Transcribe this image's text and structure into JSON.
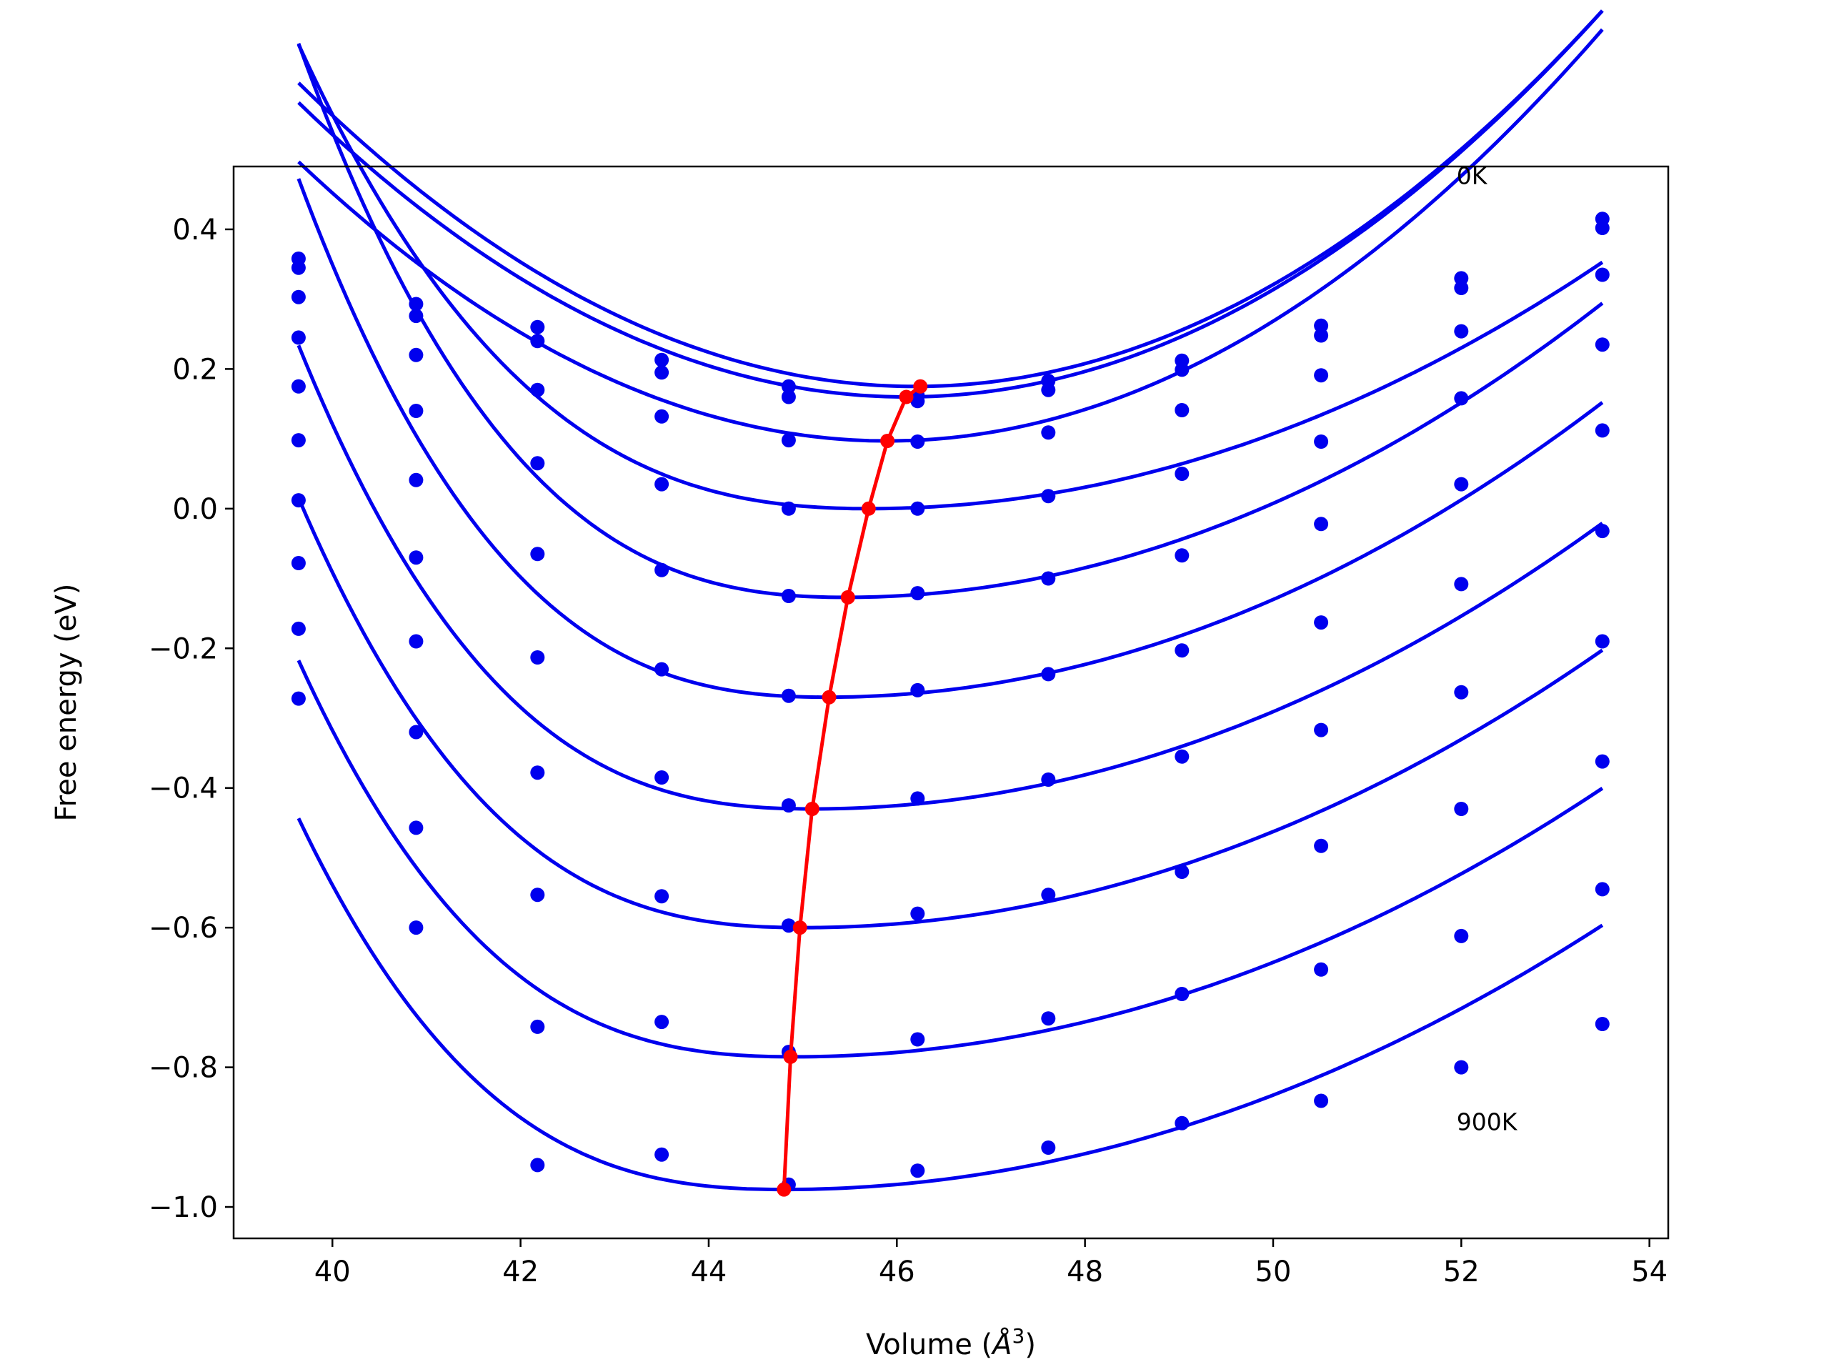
{
  "chart_data": {
    "type": "line",
    "title": "",
    "xlabel_prefix": "Volume (",
    "xlabel_var": "Å",
    "xlabel_sup": "3",
    "xlabel_suffix": ")",
    "ylabel": "Free energy (eV)",
    "xlim": [
      38.95,
      54.2
    ],
    "ylim": [
      -1.045,
      0.49
    ],
    "xticks": [
      40,
      42,
      44,
      46,
      48,
      50,
      52,
      54
    ],
    "yticks": [
      -1.0,
      -0.8,
      -0.6,
      -0.4,
      -0.2,
      0.0,
      0.2,
      0.4
    ],
    "xtick_labels": [
      "40",
      "42",
      "44",
      "46",
      "48",
      "50",
      "52",
      "54"
    ],
    "ytick_labels": [
      "−1.0",
      "−0.8",
      "−0.6",
      "−0.4",
      "−0.2",
      "0.0",
      "0.2",
      "0.4"
    ],
    "grid": false,
    "annotations": [
      {
        "text": "0K",
        "x": 51.95,
        "y": 0.465
      },
      {
        "text": "900K",
        "x": 51.95,
        "y": -0.89
      }
    ],
    "colors": {
      "fit": "#0000ee",
      "points": "#0000ee",
      "minimum": "#ff0000"
    },
    "points_x": [
      39.64,
      40.89,
      42.18,
      43.5,
      44.85,
      46.22,
      47.61,
      49.03,
      50.51,
      52.0,
      53.5
    ],
    "series": [
      {
        "points_y": [
          0.358,
          0.293,
          0.26,
          0.213,
          0.175,
          0.162,
          0.183,
          0.212,
          0.262,
          0.33,
          0.415
        ],
        "fit": {
          "a": 0.0101,
          "v0": 46.2,
          "e0": 0.175,
          "k": 0.0
        }
      },
      {
        "points_y": [
          0.345,
          0.276,
          0.24,
          0.195,
          0.16,
          0.154,
          0.17,
          0.199,
          0.248,
          0.316,
          0.402
        ],
        "fit": {
          "a": 0.0101,
          "v0": 46.1,
          "e0": 0.16,
          "k": 0.0
        }
      },
      {
        "points_y": [
          0.303,
          0.22,
          0.17,
          0.132,
          0.098,
          0.096,
          0.109,
          0.141,
          0.191,
          0.254,
          0.335
        ],
        "fit": {
          "a": 0.0102,
          "v0": 45.9,
          "e0": 0.097,
          "k": 0.0
        }
      },
      {
        "points_y": [
          0.245,
          0.14,
          0.065,
          0.035,
          0.0,
          0.0,
          0.018,
          0.05,
          0.096,
          0.158,
          0.235
        ],
        "fit": {
          "a": 0.0058,
          "v0": 45.7,
          "e0": 0.0,
          "k": 0.35
        }
      },
      {
        "points_y": [
          0.175,
          0.041,
          -0.065,
          -0.088,
          -0.125,
          -0.121,
          -0.1,
          -0.067,
          -0.022,
          0.035,
          0.112
        ],
        "fit": {
          "a": 0.0065,
          "v0": 45.45,
          "e0": -0.127,
          "k": 0.45
        }
      },
      {
        "points_y": [
          0.098,
          -0.07,
          -0.213,
          -0.23,
          -0.268,
          -0.26,
          -0.237,
          -0.203,
          -0.163,
          -0.108,
          -0.032
        ],
        "fit": {
          "a": 0.0062,
          "v0": 45.25,
          "e0": -0.27,
          "k": 0.5
        }
      },
      {
        "points_y": [
          0.012,
          -0.19,
          -0.378,
          -0.385,
          -0.425,
          -0.415,
          -0.388,
          -0.355,
          -0.317,
          -0.263,
          -0.19
        ],
        "fit": {
          "a": 0.0058,
          "v0": 45.1,
          "e0": -0.43,
          "k": 0.52
        }
      },
      {
        "points_y": [
          -0.078,
          -0.32,
          -0.553,
          -0.555,
          -0.597,
          -0.58,
          -0.553,
          -0.52,
          -0.483,
          -0.43,
          -0.362
        ],
        "fit": {
          "a": 0.0055,
          "v0": 45.0,
          "e0": -0.6,
          "k": 0.54
        }
      },
      {
        "points_y": [
          -0.172,
          -0.457,
          -0.742,
          -0.735,
          -0.778,
          -0.76,
          -0.73,
          -0.695,
          -0.66,
          -0.612,
          -0.545
        ],
        "fit": {
          "a": 0.0052,
          "v0": 44.9,
          "e0": -0.785,
          "k": 0.56
        }
      },
      {
        "points_y": [
          -0.272,
          -0.6,
          -0.94,
          -0.925,
          -0.968,
          -0.948,
          -0.915,
          -0.88,
          -0.848,
          -0.8,
          -0.738
        ],
        "fit": {
          "a": 0.005,
          "v0": 44.8,
          "e0": -0.975,
          "k": 0.58
        }
      }
    ],
    "minimum_curve": {
      "x": [
        46.25,
        46.1,
        45.9,
        45.7,
        45.48,
        45.28,
        45.1,
        44.97,
        44.87,
        44.8
      ],
      "y": [
        0.175,
        0.16,
        0.097,
        0.0,
        -0.127,
        -0.27,
        -0.43,
        -0.6,
        -0.785,
        -0.975
      ]
    }
  }
}
